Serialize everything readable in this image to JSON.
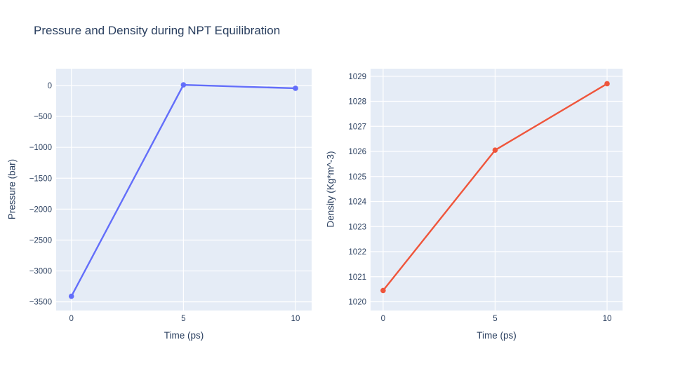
{
  "figure": {
    "title": "Pressure and Density during NPT Equilibration"
  },
  "colors": {
    "paper_bg": "#ffffff",
    "plot_bg": "#E5ECF6",
    "grid": "#ffffff",
    "text": "#2a3f5f",
    "pressure_line": "#636EFA",
    "density_line": "#EF553B"
  },
  "chart_data": [
    {
      "type": "line",
      "name": "pressure",
      "title": "",
      "xlabel": "Time (ps)",
      "ylabel": "Pressure (bar)",
      "x": [
        0,
        5,
        10
      ],
      "y": [
        -3410,
        10,
        -45
      ],
      "xticks": [
        0,
        5,
        10
      ],
      "yticks": [
        0,
        -500,
        -1000,
        -1500,
        -2000,
        -2500,
        -3000,
        -3500
      ],
      "xlim": [
        -0.68,
        10.72
      ],
      "ylim": [
        -3640,
        272
      ],
      "grid": true,
      "legend": "none",
      "line_color": "#636EFA",
      "marker": "circle"
    },
    {
      "type": "line",
      "name": "density",
      "title": "",
      "xlabel": "Time (ps)",
      "ylabel": "Density (Kg*m^-3)",
      "x": [
        0,
        5,
        10
      ],
      "y": [
        1020.45,
        1026.05,
        1028.7
      ],
      "xticks": [
        0,
        5,
        10
      ],
      "yticks": [
        1020,
        1021,
        1022,
        1023,
        1024,
        1025,
        1026,
        1027,
        1028,
        1029
      ],
      "xlim": [
        -0.56,
        10.69
      ],
      "ylim": [
        1019.65,
        1029.3
      ],
      "grid": true,
      "legend": "none",
      "line_color": "#EF553B",
      "marker": "circle"
    }
  ]
}
